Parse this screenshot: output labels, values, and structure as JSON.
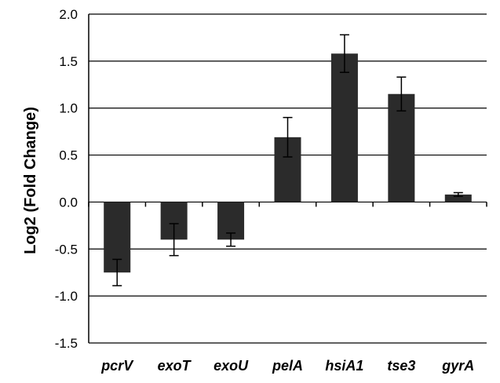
{
  "chart_data": {
    "type": "bar",
    "title": "",
    "xlabel": "",
    "ylabel": "Log2 (Fold Change)",
    "ylim": [
      -1.5,
      2.0
    ],
    "yticks": [
      2.0,
      1.5,
      1.0,
      0.5,
      0.0,
      -0.5,
      -1.0,
      -1.5
    ],
    "ytick_labels": [
      "2.0",
      "1.5",
      "1.0",
      "0.5",
      "0.0",
      "-0.5",
      "-1.0",
      "-1.5"
    ],
    "grid": true,
    "bar_color": "#2b2b2b",
    "categories": [
      "pcrV",
      "exoT",
      "exoU",
      "pelA",
      "hsiA1",
      "tse3",
      "gyrA"
    ],
    "values": [
      -0.75,
      -0.4,
      -0.4,
      0.69,
      1.58,
      1.15,
      0.08
    ],
    "error": [
      0.14,
      0.17,
      0.07,
      0.21,
      0.2,
      0.18,
      0.02
    ]
  }
}
